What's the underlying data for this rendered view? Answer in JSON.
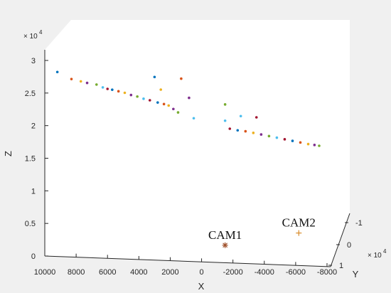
{
  "chart_data": {
    "type": "scatter",
    "title": "",
    "view": "3d",
    "xlabel": "X",
    "ylabel": "Y",
    "zlabel": "Z",
    "x_ticks": [
      "10000",
      "8000",
      "6000",
      "4000",
      "2000",
      "0",
      "-2000",
      "-4000",
      "-6000",
      "-8000"
    ],
    "y_ticks": [
      "-1",
      "0",
      "1"
    ],
    "z_ticks": [
      "0",
      "0.5",
      "1",
      "1.5",
      "2",
      "2.5",
      "3"
    ],
    "y_exponent_base": "× 10",
    "y_exponent_power": "4",
    "z_exponent_base": "× 10",
    "z_exponent_power": "4",
    "xlim": [
      -8000,
      10000
    ],
    "zlim": [
      0,
      30000
    ],
    "grid": false,
    "cameras": [
      {
        "name": "CAM1",
        "x": -1500,
        "z": 2700,
        "marker": "asterisk",
        "color": "#a0522d"
      },
      {
        "name": "CAM2",
        "x": -6200,
        "z": 5000,
        "marker": "plus",
        "color": "#d98c2b"
      }
    ],
    "point_colors": [
      "#0072bd",
      "#d95319",
      "#edb120",
      "#7e2f8e",
      "#77ac30",
      "#4dbeee",
      "#a2142f"
    ],
    "points": [
      {
        "x": 9200,
        "z": 28300
      },
      {
        "x": 8300,
        "z": 27300
      },
      {
        "x": 7700,
        "z": 27000
      },
      {
        "x": 7300,
        "z": 26800
      },
      {
        "x": 6700,
        "z": 26600
      },
      {
        "x": 6300,
        "z": 26200
      },
      {
        "x": 6000,
        "z": 26000
      },
      {
        "x": 5700,
        "z": 25900
      },
      {
        "x": 5300,
        "z": 25700
      },
      {
        "x": 4900,
        "z": 25500
      },
      {
        "x": 4500,
        "z": 25200
      },
      {
        "x": 4100,
        "z": 25000
      },
      {
        "x": 3700,
        "z": 24700
      },
      {
        "x": 3300,
        "z": 24500
      },
      {
        "x": 2800,
        "z": 24200
      },
      {
        "x": 2400,
        "z": 24000
      },
      {
        "x": 2100,
        "z": 23800
      },
      {
        "x": 1800,
        "z": 23300
      },
      {
        "x": 1500,
        "z": 22800
      },
      {
        "x": 500,
        "z": 22000
      },
      {
        "x": -1800,
        "z": 20600
      },
      {
        "x": -2300,
        "z": 20400
      },
      {
        "x": -2800,
        "z": 20300
      },
      {
        "x": -3300,
        "z": 20100
      },
      {
        "x": -3800,
        "z": 19900
      },
      {
        "x": -4300,
        "z": 19700
      },
      {
        "x": -4800,
        "z": 19500
      },
      {
        "x": -5300,
        "z": 19300
      },
      {
        "x": -5800,
        "z": 19100
      },
      {
        "x": -6300,
        "z": 18900
      },
      {
        "x": -6800,
        "z": 18700
      },
      {
        "x": -7200,
        "z": 18600
      },
      {
        "x": -7500,
        "z": 18500
      },
      {
        "x": -1500,
        "z": 21800
      },
      {
        "x": -3500,
        "z": 22500
      },
      {
        "x": 3000,
        "z": 28100
      },
      {
        "x": 1300,
        "z": 28000
      },
      {
        "x": 2600,
        "z": 26200
      },
      {
        "x": 800,
        "z": 25100
      },
      {
        "x": -1500,
        "z": 24300
      },
      {
        "x": -2500,
        "z": 22600
      }
    ]
  }
}
